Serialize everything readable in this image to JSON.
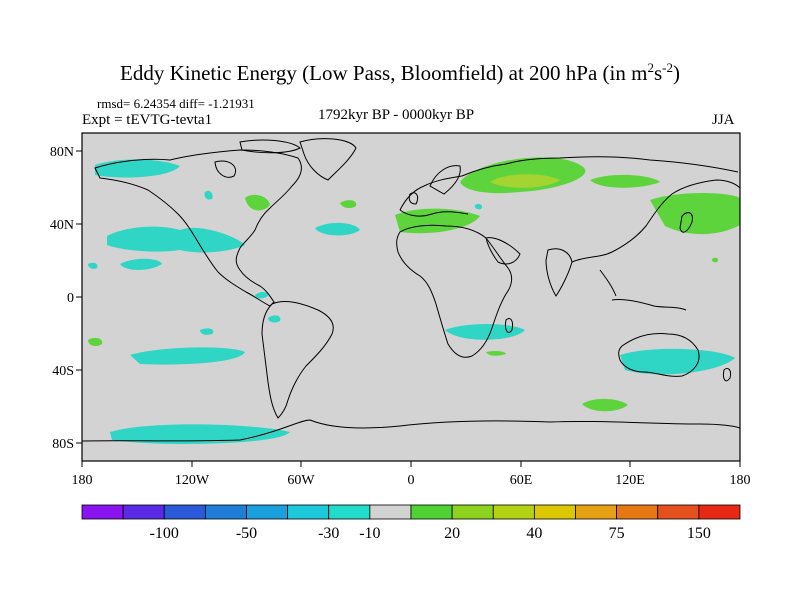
{
  "title": {
    "main": "Eddy Kinetic Energy (Low Pass, Bloomfield) at 200 hPa (in m",
    "unit_m_exp": "2",
    "unit_s": "s",
    "unit_s_exp": "-2",
    "close": ")"
  },
  "stats": "rmsd= 6.24354 diff= -1.21931",
  "expt": "Expt = tEVTG-tevta1",
  "period": "1792kyr BP - 0000kyr BP",
  "season": "JJA",
  "axes": {
    "x_ticks": [
      "180",
      "120W",
      "60W",
      "0",
      "60E",
      "120E",
      "180"
    ],
    "y_ticks": [
      "80N",
      "40N",
      "0",
      "40S",
      "80S"
    ]
  },
  "colorbar": {
    "colors": [
      "#8a14f0",
      "#5a2ae6",
      "#2a5ad8",
      "#1e7ed8",
      "#1aa0dc",
      "#1ec8dc",
      "#20dcc8",
      "#d3d3d3",
      "#50d232",
      "#8cd21e",
      "#b4d214",
      "#dcc800",
      "#e6a014",
      "#e67814",
      "#e6501e",
      "#e62814"
    ],
    "labels": [
      "-100",
      "-50",
      "-30",
      "-10",
      "20",
      "40",
      "75",
      "150"
    ]
  },
  "colors": {
    "land_background": "#d3d3d3",
    "negative_fill": "#2fd6c6",
    "positive_fill": "#5ed43c",
    "positive_strong": "#a3d432"
  }
}
